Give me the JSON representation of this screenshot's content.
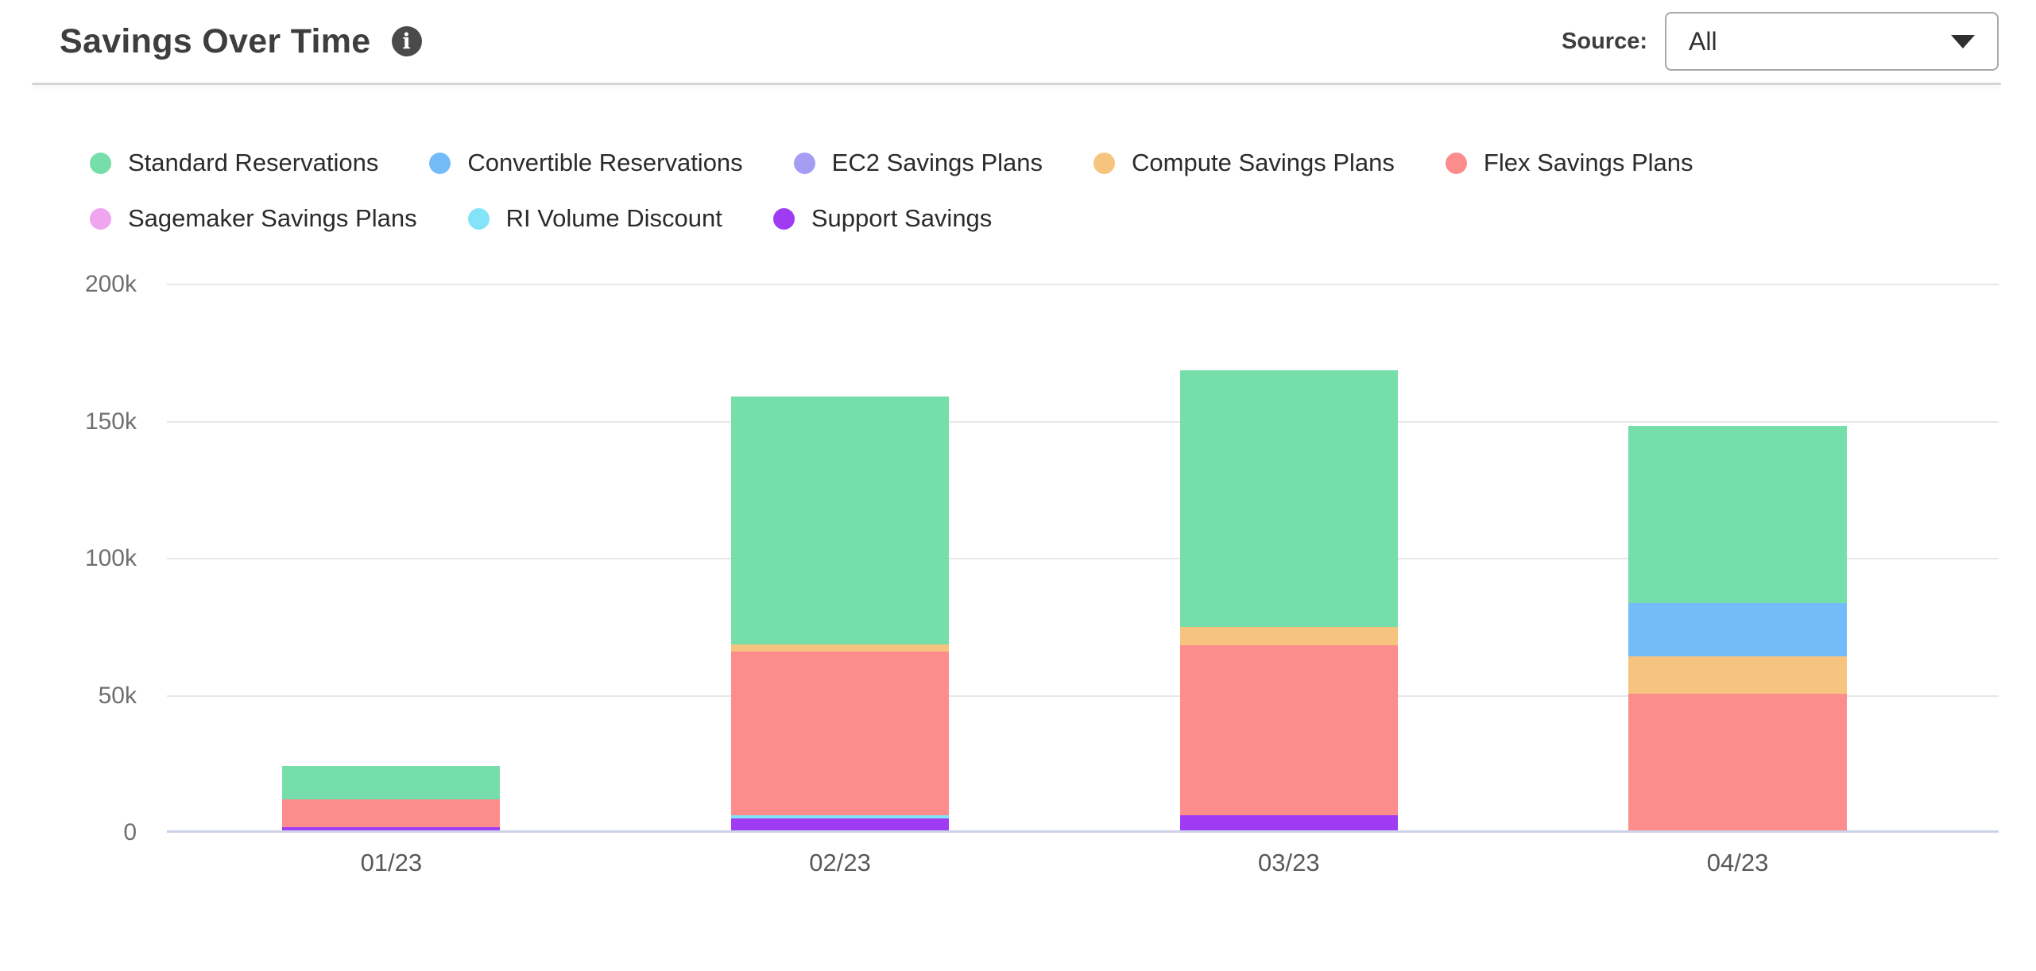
{
  "header": {
    "title": "Savings Over Time",
    "info_icon_glyph": "i",
    "source_label": "Source:",
    "source_value": "All"
  },
  "chart_data": {
    "type": "bar",
    "stacked": true,
    "title": "Savings Over Time",
    "categories": [
      "01/23",
      "02/23",
      "03/23",
      "04/23"
    ],
    "series": [
      {
        "name": "Standard Reservations",
        "color": "#76DEAA",
        "values": [
          12200,
          90400,
          93600,
          64600
        ]
      },
      {
        "name": "Convertible Reservations",
        "color": "#74BBFA",
        "values": [
          0,
          0,
          0,
          19400
        ]
      },
      {
        "name": "EC2 Savings Plans",
        "color": "#A59CF4",
        "values": [
          0,
          0,
          0,
          0
        ]
      },
      {
        "name": "Compute Savings Plans",
        "color": "#F7C480",
        "values": [
          0,
          2600,
          6700,
          13600
        ]
      },
      {
        "name": "Flex Savings Plans",
        "color": "#FD8C8C",
        "values": [
          10100,
          59700,
          62000,
          49900
        ]
      },
      {
        "name": "Sagemaker Savings Plans",
        "color": "#EFA6EF",
        "values": [
          0,
          0,
          0,
          0
        ]
      },
      {
        "name": "RI Volume Discount",
        "color": "#82E3F9",
        "values": [
          0,
          1200,
          0,
          0
        ]
      },
      {
        "name": "Support Savings",
        "color": "#A03BF4",
        "values": [
          1200,
          4300,
          5500,
          0
        ]
      }
    ],
    "stack_order_bottom_to_top": [
      "Support Savings",
      "RI Volume Discount",
      "Sagemaker Savings Plans",
      "Flex Savings Plans",
      "Compute Savings Plans",
      "EC2 Savings Plans",
      "Convertible Reservations",
      "Standard Reservations"
    ],
    "totals": [
      23500,
      158200,
      167800,
      147500
    ],
    "ylim": [
      0,
      200000
    ],
    "yticks": [
      {
        "value": 0,
        "label": "0"
      },
      {
        "value": 50000,
        "label": "50k"
      },
      {
        "value": 100000,
        "label": "100k"
      },
      {
        "value": 150000,
        "label": "150k"
      },
      {
        "value": 200000,
        "label": "200k"
      }
    ],
    "grid": true,
    "legend_position": "top",
    "colors": {
      "gridline": "#e7e7e7",
      "baseline": "#ccd3e9",
      "axis_text": "#6f6f6f"
    }
  }
}
